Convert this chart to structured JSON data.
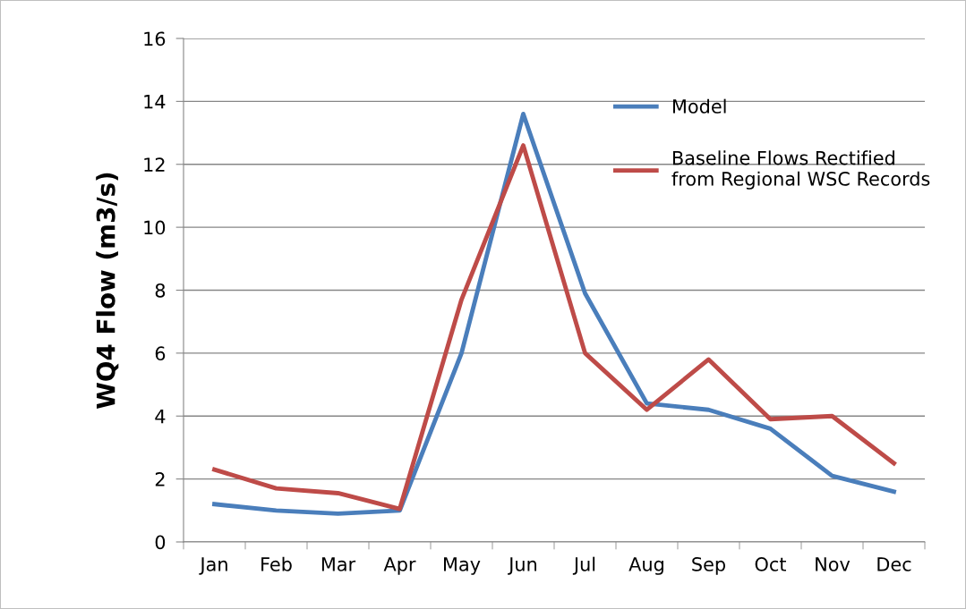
{
  "chart_data": {
    "type": "line",
    "ylabel": "WQ4 Flow (m3/s)",
    "categories": [
      "Jan",
      "Feb",
      "Mar",
      "Apr",
      "May",
      "Jun",
      "Jul",
      "Aug",
      "Sep",
      "Oct",
      "Nov",
      "Dec"
    ],
    "series": [
      {
        "name": "Model",
        "color": "#4a7ebb",
        "values": [
          1.2,
          1.0,
          0.9,
          1.0,
          6.0,
          13.6,
          7.9,
          4.4,
          4.2,
          3.6,
          2.1,
          1.6
        ]
      },
      {
        "name": "Baseline Flows Rectified\nfrom Regional WSC Records",
        "color": "#be4b48",
        "values": [
          2.3,
          1.7,
          1.55,
          1.05,
          7.7,
          12.6,
          6.0,
          4.2,
          5.8,
          3.9,
          4.0,
          2.5
        ]
      }
    ],
    "ylim": [
      0,
      16
    ],
    "yticks": [
      0,
      2,
      4,
      6,
      8,
      10,
      12,
      14,
      16
    ],
    "grid": "y",
    "legend": "right",
    "marker": "none",
    "line_style": "solid"
  }
}
